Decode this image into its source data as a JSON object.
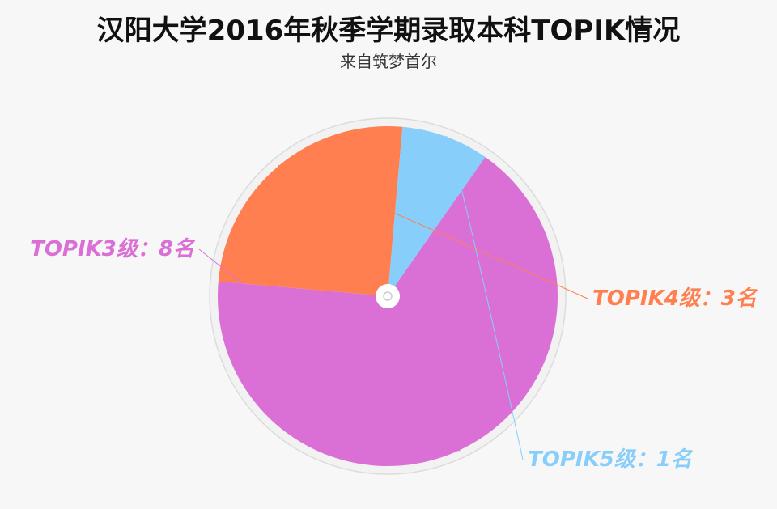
{
  "chart_data": {
    "type": "pie",
    "title": "汉阳大学2016年秋季学期录取本科TOPIK情况",
    "subtitle": "来自筑梦首尔",
    "slices": [
      {
        "label": "TOPIK3级：8名",
        "value": 8,
        "color": "#da70d6"
      },
      {
        "label": "TOPIK4级：3名",
        "value": 3,
        "color": "#ff7f50"
      },
      {
        "label": "TOPIK5级：1名",
        "value": 1,
        "color": "#87cefa"
      }
    ],
    "start_angle_deg": 35,
    "legend": "none"
  }
}
